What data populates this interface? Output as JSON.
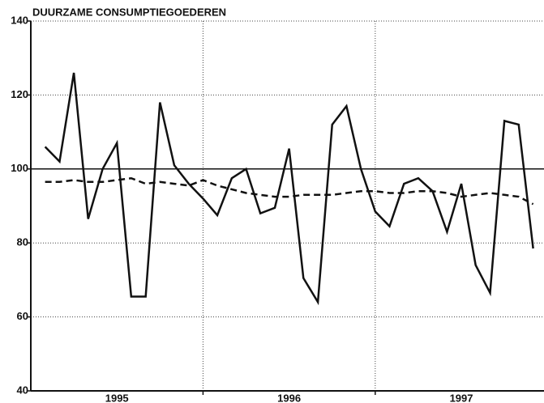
{
  "chart_data": {
    "type": "line",
    "title": "DUURZAME CONSUMPTIEGOEDEREN",
    "x": [
      1995.083,
      1995.167,
      1995.25,
      1995.333,
      1995.417,
      1995.5,
      1995.583,
      1995.667,
      1995.75,
      1995.833,
      1995.917,
      1996,
      1996.083,
      1996.167,
      1996.25,
      1996.333,
      1996.417,
      1996.5,
      1996.583,
      1996.667,
      1996.75,
      1996.833,
      1996.917,
      1997,
      1997.083,
      1997.167,
      1997.25,
      1997.333,
      1997.417,
      1997.5,
      1997.583,
      1997.667,
      1997.75,
      1997.833,
      1997.917
    ],
    "series": [
      {
        "color": "#111111",
        "dash": false,
        "values": [
          106,
          102,
          126,
          86.5,
          100,
          107,
          65.5,
          65.5,
          118,
          101,
          96,
          92,
          87.5,
          97.5,
          100,
          88,
          89.5,
          105.5,
          70.5,
          64,
          112,
          117,
          100,
          88.5,
          84.5,
          96,
          97.5,
          94,
          83,
          96,
          74,
          66.5,
          113,
          112,
          78.5
        ]
      },
      {
        "color": "#111111",
        "dash": true,
        "values": [
          96.5,
          96.5,
          97,
          96.5,
          96.5,
          97,
          97.5,
          96,
          96.5,
          96,
          95.5,
          97,
          95.5,
          94.5,
          93.5,
          93,
          92.5,
          92.5,
          93,
          93,
          93,
          93.5,
          94,
          94,
          93.5,
          93.5,
          94,
          94,
          93.5,
          92.5,
          93,
          93.5,
          93,
          92.5,
          90.5
        ]
      }
    ],
    "xlim": [
      1995,
      1997.98
    ],
    "xticks": [
      {
        "value": 1995.5,
        "label": "1995"
      },
      {
        "value": 1996.5,
        "label": "1996"
      },
      {
        "value": 1997.5,
        "label": "1997"
      }
    ],
    "xgrid": [
      1996,
      1997
    ],
    "ylim": [
      40,
      140
    ],
    "yticks": [
      40,
      60,
      80,
      100,
      120,
      140
    ],
    "reference_line": 100,
    "grid": true
  }
}
